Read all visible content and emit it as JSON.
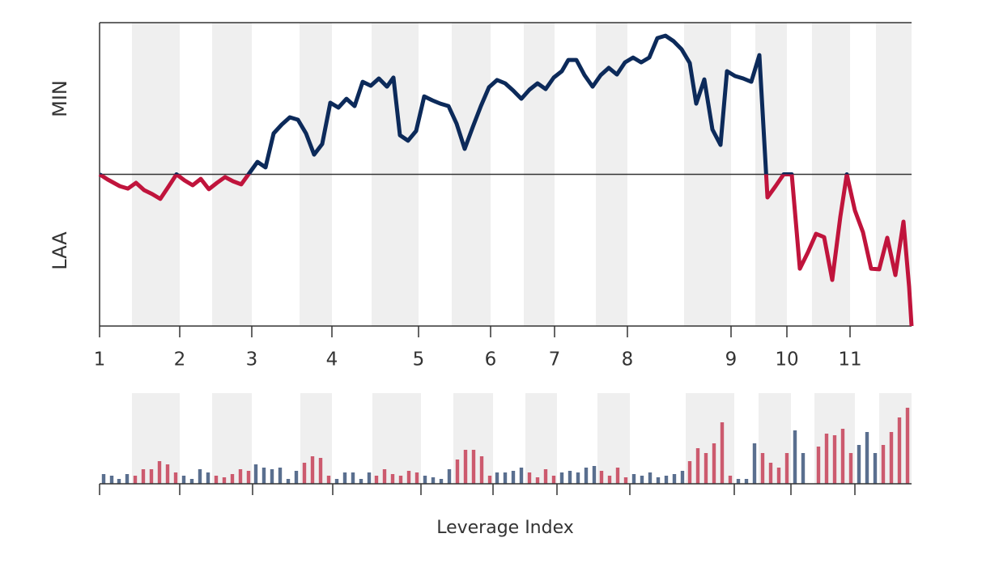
{
  "chart_data": [
    {
      "type": "line",
      "team_labels": {
        "top": "MIN",
        "bottom": "LAA"
      },
      "xlim": [
        0,
        1003
      ],
      "ylim": [
        0,
        100
      ],
      "reference_line": 50,
      "top_color": "#0c2a5a",
      "bottom_color": "#c0143c",
      "band_color": "#efefef",
      "bands": [
        [
          40,
          99
        ],
        [
          139,
          188
        ],
        [
          247,
          287
        ],
        [
          336,
          394
        ],
        [
          435,
          483
        ],
        [
          524,
          562
        ],
        [
          613,
          652
        ],
        [
          722,
          780
        ],
        [
          810,
          849
        ],
        [
          880,
          927
        ],
        [
          959,
          1003
        ]
      ],
      "xticks": [
        {
          "value": 0,
          "label": "1"
        },
        {
          "value": 99,
          "label": "2"
        },
        {
          "value": 188,
          "label": "3"
        },
        {
          "value": 287,
          "label": "4"
        },
        {
          "value": 394,
          "label": "5"
        },
        {
          "value": 483,
          "label": "6"
        },
        {
          "value": 562,
          "label": "7"
        },
        {
          "value": 652,
          "label": "8"
        },
        {
          "value": 780,
          "label": "9"
        },
        {
          "value": 849,
          "label": "10"
        },
        {
          "value": 927,
          "label": "11"
        }
      ],
      "x": [
        0,
        10,
        25,
        35,
        45,
        55,
        65,
        75,
        85,
        95,
        105,
        115,
        125,
        135,
        145,
        155,
        165,
        175,
        185,
        195,
        205,
        215,
        225,
        235,
        245,
        255,
        265,
        275,
        285,
        295,
        305,
        315,
        325,
        335,
        345,
        355,
        363,
        371,
        381,
        391,
        401,
        411,
        421,
        431,
        441,
        451,
        461,
        471,
        481,
        491,
        501,
        511,
        521,
        531,
        541,
        551,
        561,
        571,
        579,
        589,
        599,
        609,
        619,
        629,
        639,
        649,
        659,
        669,
        679,
        689,
        699,
        709,
        719,
        729,
        737,
        747,
        757,
        767,
        775,
        785,
        795,
        805,
        815,
        825,
        835,
        845,
        855,
        865,
        875,
        885,
        895,
        905,
        915,
        923,
        933,
        943,
        953,
        963,
        973,
        983,
        993,
        1000,
        1003
      ],
      "values": [
        50,
        48.3,
        46.1,
        45.3,
        47.2,
        44.8,
        43.5,
        41.9,
        45.9,
        50,
        48,
        46.4,
        48.5,
        45.1,
        47.2,
        49.1,
        47.7,
        46.7,
        50.4,
        54.1,
        52.3,
        63.5,
        66.4,
        68.8,
        68,
        63.5,
        56.5,
        60,
        73.6,
        72,
        74.9,
        72.5,
        80.5,
        79.2,
        81.6,
        78.9,
        81.9,
        62.9,
        61.1,
        64.3,
        75.7,
        74.4,
        73.3,
        72.5,
        66.7,
        58.4,
        65.6,
        72.5,
        78.7,
        81.1,
        80,
        77.6,
        74.9,
        77.9,
        80,
        78.1,
        81.9,
        84,
        87.7,
        87.7,
        82.7,
        78.9,
        82.7,
        85.1,
        82.9,
        86.9,
        88.5,
        86.9,
        88.5,
        94.9,
        95.7,
        93.9,
        91.2,
        86.7,
        73.3,
        81.3,
        64.8,
        59.7,
        84,
        82.4,
        81.6,
        80.5,
        89.3,
        42.4,
        46.1,
        50,
        50,
        18.9,
        24.3,
        30.4,
        29.3,
        15.2,
        36,
        50,
        38.1,
        30.9,
        18.9,
        18.7,
        29.1,
        16.8,
        34.4,
        12.8,
        0
      ]
    },
    {
      "type": "bar",
      "xlabel": "Leverage Index",
      "xlim": [
        0,
        1003
      ],
      "ylim": [
        0,
        5
      ],
      "band_color": "#efefef",
      "bands": [
        [
          40,
          99
        ],
        [
          139,
          188
        ],
        [
          248,
          287
        ],
        [
          337,
          397
        ],
        [
          437,
          486
        ],
        [
          526,
          565
        ],
        [
          615,
          655
        ],
        [
          724,
          784
        ],
        [
          814,
          854
        ],
        [
          883,
          933
        ],
        [
          963,
          1003
        ]
      ],
      "xticks": [
        0,
        99,
        189,
        288,
        397,
        486,
        565,
        655,
        784,
        854,
        933
      ],
      "x": [
        5,
        15,
        24,
        34,
        44,
        54,
        64,
        74,
        84,
        94,
        104,
        114,
        124,
        134,
        144,
        154,
        164,
        174,
        184,
        193,
        203,
        213,
        223,
        233,
        243,
        253,
        263,
        273,
        283,
        293,
        303,
        313,
        323,
        333,
        342,
        352,
        362,
        372,
        382,
        392,
        402,
        412,
        422,
        432,
        442,
        452,
        462,
        472,
        482,
        491,
        501,
        511,
        521,
        531,
        541,
        551,
        561,
        571,
        581,
        591,
        601,
        611,
        620,
        630,
        640,
        650,
        660,
        670,
        680,
        690,
        700,
        710,
        720,
        729,
        739,
        749,
        759,
        769,
        779,
        789,
        799,
        809,
        819,
        829,
        839,
        849,
        859,
        869,
        888,
        898,
        908,
        918,
        928,
        938,
        948,
        958,
        968,
        978,
        988,
        998
      ],
      "values": [
        0.6,
        0.5,
        0.3,
        0.6,
        0.5,
        0.9,
        0.9,
        1.4,
        1.2,
        0.7,
        0.5,
        0.3,
        0.9,
        0.7,
        0.5,
        0.4,
        0.6,
        0.9,
        0.8,
        1.2,
        1,
        0.9,
        1,
        0.3,
        0.8,
        1.3,
        1.7,
        1.6,
        0.5,
        0.3,
        0.7,
        0.7,
        0.3,
        0.7,
        0.5,
        0.9,
        0.6,
        0.5,
        0.8,
        0.7,
        0.5,
        0.4,
        0.3,
        0.9,
        1.5,
        2.1,
        2.1,
        1.7,
        0.5,
        0.7,
        0.7,
        0.8,
        1,
        0.7,
        0.4,
        0.9,
        0.5,
        0.7,
        0.8,
        0.7,
        1,
        1.1,
        0.8,
        0.5,
        1,
        0.4,
        0.6,
        0.5,
        0.7,
        0.4,
        0.5,
        0.6,
        0.8,
        1.4,
        2.2,
        1.9,
        2.5,
        3.8,
        0.5,
        0.3,
        0.3,
        2.5,
        1.9,
        1.3,
        1,
        1.9,
        3.3,
        1.9,
        2.3,
        3.1,
        3,
        3.4,
        1.9,
        2.4,
        3.2,
        1.9,
        2.4,
        3.2,
        4.1,
        4.7
      ],
      "colors": [
        "#5a6f8f",
        "#5a6f8f",
        "#5a6f8f",
        "#5a6f8f",
        "#cc5a6e",
        "#cc5a6e",
        "#cc5a6e",
        "#cc5a6e",
        "#cc5a6e",
        "#cc5a6e",
        "#5a6f8f",
        "#5a6f8f",
        "#5a6f8f",
        "#5a6f8f",
        "#cc5a6e",
        "#cc5a6e",
        "#cc5a6e",
        "#cc5a6e",
        "#cc5a6e",
        "#5a6f8f",
        "#5a6f8f",
        "#5a6f8f",
        "#5a6f8f",
        "#5a6f8f",
        "#5a6f8f",
        "#cc5a6e",
        "#cc5a6e",
        "#cc5a6e",
        "#cc5a6e",
        "#5a6f8f",
        "#5a6f8f",
        "#5a6f8f",
        "#5a6f8f",
        "#5a6f8f",
        "#cc5a6e",
        "#cc5a6e",
        "#cc5a6e",
        "#cc5a6e",
        "#cc5a6e",
        "#cc5a6e",
        "#5a6f8f",
        "#5a6f8f",
        "#5a6f8f",
        "#5a6f8f",
        "#cc5a6e",
        "#cc5a6e",
        "#cc5a6e",
        "#cc5a6e",
        "#cc5a6e",
        "#5a6f8f",
        "#5a6f8f",
        "#5a6f8f",
        "#5a6f8f",
        "#cc5a6e",
        "#cc5a6e",
        "#cc5a6e",
        "#cc5a6e",
        "#5a6f8f",
        "#5a6f8f",
        "#5a6f8f",
        "#5a6f8f",
        "#5a6f8f",
        "#cc5a6e",
        "#cc5a6e",
        "#cc5a6e",
        "#cc5a6e",
        "#5a6f8f",
        "#5a6f8f",
        "#5a6f8f",
        "#5a6f8f",
        "#5a6f8f",
        "#5a6f8f",
        "#5a6f8f",
        "#cc5a6e",
        "#cc5a6e",
        "#cc5a6e",
        "#cc5a6e",
        "#cc5a6e",
        "#cc5a6e",
        "#5a6f8f",
        "#5a6f8f",
        "#5a6f8f",
        "#cc5a6e",
        "#cc5a6e",
        "#cc5a6e",
        "#cc5a6e",
        "#5a6f8f",
        "#5a6f8f",
        "#cc5a6e",
        "#cc5a6e",
        "#cc5a6e",
        "#cc5a6e",
        "#cc5a6e",
        "#5a6f8f",
        "#5a6f8f",
        "#5a6f8f",
        "#cc5a6e",
        "#cc5a6e",
        "#cc5a6e",
        "#cc5a6e"
      ]
    }
  ]
}
